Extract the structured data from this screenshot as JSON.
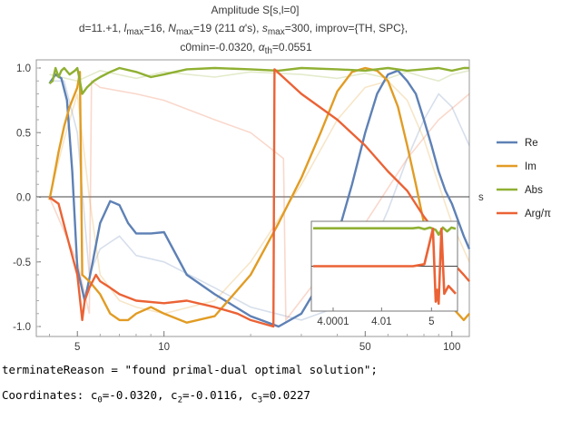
{
  "chart_data": {
    "type": "line",
    "title": "Amplitude S[s,l=0]",
    "subtitle_lines": [
      "d=11.+1, lmax=16, Nmax=19 (211 α's), smax=300, improv={TH, SPC},",
      "c0min=-0.0320, αth=0.0551"
    ],
    "xlabel": "s",
    "xscale": "log",
    "xlim": [
      3.6,
      115
    ],
    "ylim": [
      -1.05,
      1.05
    ],
    "x_ticks": [
      "5",
      "10",
      "50",
      "100"
    ],
    "y_ticks": [
      "1.0",
      "0.5",
      "0.0",
      "-0.5",
      "-1.0"
    ],
    "legend_position": "right",
    "series": [
      {
        "name": "Re",
        "color": "#5e81b5",
        "x": [
          4.0,
          4.2,
          4.4,
          4.6,
          4.8,
          5.0,
          5.3,
          5.6,
          6.0,
          6.5,
          7.0,
          7.5,
          8.0,
          9.0,
          10.0,
          12.0,
          15.0,
          20.0,
          25.0,
          30.0,
          35.0,
          40.0,
          45.0,
          50.0,
          55.0,
          60.0,
          65.0,
          70.0,
          75.0,
          80.0,
          85.0,
          90.0,
          95.0,
          100.0,
          110.0,
          115.0
        ],
        "y": [
          0.88,
          0.95,
          0.92,
          0.75,
          0.2,
          -0.55,
          -0.8,
          -0.55,
          -0.2,
          -0.03,
          -0.06,
          -0.2,
          -0.28,
          -0.28,
          -0.27,
          -0.6,
          -0.75,
          -0.92,
          -1.0,
          -0.9,
          -0.65,
          -0.3,
          0.1,
          0.5,
          0.8,
          0.95,
          0.98,
          0.9,
          0.8,
          0.6,
          0.4,
          0.2,
          0.05,
          -0.05,
          -0.3,
          -0.4
        ]
      },
      {
        "name": "Im",
        "color": "#e19c24",
        "x": [
          4.0,
          4.1,
          4.3,
          4.5,
          4.7,
          5.0,
          5.1,
          5.2,
          5.5,
          6.0,
          6.5,
          7.0,
          7.5,
          8.0,
          9.0,
          10.0,
          12.0,
          15.0,
          20.0,
          25.0,
          30.0,
          35.0,
          40.0,
          45.0,
          50.0,
          55.0,
          60.0,
          65.0,
          70.0,
          75.0,
          80.0,
          90.0,
          100.0,
          110.0,
          115.0
        ],
        "y": [
          -0.02,
          0.1,
          0.35,
          0.55,
          0.7,
          0.85,
          0.97,
          -0.6,
          -0.65,
          -0.75,
          -0.9,
          -0.95,
          -0.95,
          -0.9,
          -0.85,
          -0.9,
          -0.97,
          -0.92,
          -0.6,
          -0.2,
          0.15,
          0.5,
          0.82,
          0.97,
          1.0,
          0.98,
          0.9,
          0.7,
          0.4,
          0.1,
          -0.2,
          -0.6,
          -0.85,
          -0.95,
          -0.9
        ]
      },
      {
        "name": "Abs",
        "color": "#8fb032",
        "x": [
          4.0,
          4.1,
          4.2,
          4.3,
          4.4,
          4.5,
          4.7,
          4.9,
          5.0,
          5.1,
          5.2,
          5.4,
          5.7,
          6.0,
          6.5,
          7.0,
          8.0,
          9.0,
          10.0,
          12.0,
          15.0,
          20.0,
          25.0,
          30.0,
          40.0,
          50.0,
          60.0,
          70.0,
          80.0,
          90.0,
          100.0,
          110.0,
          115.0
        ],
        "y": [
          0.88,
          0.9,
          1.0,
          0.93,
          0.98,
          1.0,
          0.95,
          0.98,
          1.0,
          0.9,
          0.8,
          0.85,
          0.9,
          0.93,
          0.97,
          1.0,
          0.97,
          0.93,
          0.95,
          0.99,
          1.0,
          0.99,
          0.98,
          1.0,
          0.99,
          0.98,
          1.0,
          0.98,
          0.99,
          1.0,
          0.98,
          1.0,
          1.0
        ]
      },
      {
        "name": "Arg/π",
        "color": "#eb6235",
        "x": [
          4.0,
          4.3,
          4.6,
          5.0,
          5.2,
          5.3,
          5.5,
          5.8,
          6.0,
          6.5,
          7.0,
          8.0,
          10.0,
          12.0,
          15.0,
          18.0,
          20.0,
          24.0,
          24.2,
          30.0,
          40.0,
          50.0,
          60.0,
          70.0,
          80.0,
          90.0,
          100.0,
          110.0,
          115.0
        ],
        "y": [
          0.0,
          -0.05,
          -0.3,
          -0.6,
          -0.95,
          -0.8,
          -0.7,
          -0.6,
          -0.65,
          -0.7,
          -0.75,
          -0.8,
          -0.82,
          -0.8,
          -0.85,
          -0.9,
          -0.95,
          -1.0,
          0.99,
          0.8,
          0.6,
          0.4,
          0.2,
          0.05,
          -0.15,
          -0.3,
          -0.5,
          -0.6,
          -0.65
        ]
      }
    ],
    "ghost_series": [
      {
        "color": "#5e81b5",
        "x": [
          4.0,
          4.5,
          5.0,
          5.5,
          6.0,
          7.0,
          8.0,
          10.0,
          15.0,
          20.0,
          30.0,
          40.0,
          50.0,
          60.0,
          70.0,
          80.0,
          90.0,
          100.0,
          115.0
        ],
        "y": [
          0.9,
          0.9,
          0.5,
          -0.6,
          -0.4,
          -0.3,
          -0.45,
          -0.5,
          -0.7,
          -0.85,
          -0.95,
          -0.85,
          -0.5,
          -0.1,
          0.3,
          0.6,
          0.8,
          0.7,
          0.4
        ]
      },
      {
        "color": "#e19c24",
        "x": [
          4.0,
          4.5,
          5.0,
          5.5,
          6.0,
          7.0,
          8.0,
          10.0,
          15.0,
          20.0,
          30.0,
          40.0,
          50.0,
          60.0,
          70.0,
          80.0,
          90.0,
          100.0,
          115.0
        ],
        "y": [
          0.0,
          0.45,
          0.8,
          0.0,
          -0.6,
          -0.8,
          -0.85,
          -0.9,
          -0.8,
          -0.5,
          0.1,
          0.6,
          0.85,
          0.9,
          0.75,
          0.45,
          0.1,
          -0.2,
          -0.5
        ]
      },
      {
        "color": "#8fb032",
        "x": [
          4.0,
          5.0,
          6.0,
          8.0,
          10.0,
          15.0,
          20.0,
          30.0,
          40.0,
          50.0,
          60.0,
          70.0,
          80.0,
          90.0,
          100.0,
          115.0
        ],
        "y": [
          0.95,
          0.9,
          0.98,
          0.92,
          0.97,
          0.93,
          0.97,
          0.95,
          0.92,
          0.96,
          0.92,
          0.97,
          0.93,
          0.9,
          0.95,
          0.98
        ]
      },
      {
        "color": "#eb6235",
        "x": [
          4.0,
          5.0,
          5.5,
          5.6,
          6.0,
          8.0,
          10.0,
          15.0,
          20.0,
          26.0,
          26.5,
          35.0,
          50.0,
          70.0,
          90.0,
          115.0
        ],
        "y": [
          0.0,
          -0.5,
          -0.9,
          0.9,
          0.85,
          0.8,
          0.75,
          0.6,
          0.5,
          0.3,
          -0.95,
          -0.6,
          -0.2,
          0.3,
          0.6,
          0.8
        ]
      }
    ],
    "inset": {
      "xscale": "log",
      "x_ticks": [
        "4.0001",
        "4.01",
        "5"
      ],
      "series": [
        {
          "name": "Abs",
          "color": "#8fb032",
          "x": [
            0,
            0.4,
            0.7,
            0.74,
            0.78,
            0.82,
            0.86,
            0.88,
            0.91,
            0.94,
            0.97,
            1.0
          ],
          "y": [
            0.96,
            0.96,
            0.96,
            0.98,
            0.94,
            0.98,
            0.92,
            0.8,
            0.98,
            0.88,
            0.98,
            0.95
          ]
        },
        {
          "name": "Arg/π",
          "color": "#eb6235",
          "x": [
            0,
            0.55,
            0.7,
            0.78,
            0.84,
            0.86,
            0.87,
            0.88,
            0.9,
            0.92,
            0.95,
            1.0
          ],
          "y": [
            0.0,
            0.0,
            0.0,
            0.05,
            0.95,
            -0.9,
            -0.6,
            -0.95,
            0.95,
            -0.7,
            -0.5,
            -0.7
          ]
        }
      ]
    }
  },
  "text_lines": {
    "terminate_line": "terminateReason = \"found primal-dual optimal solution\";",
    "coords_prefix": "Coordinates: c",
    "c0_val": "=-0.0320, c",
    "c2_val": "=-0.0116, c",
    "c3_val": "=0.0227",
    "sub0": "0",
    "sub2": "2",
    "sub3": "3"
  }
}
